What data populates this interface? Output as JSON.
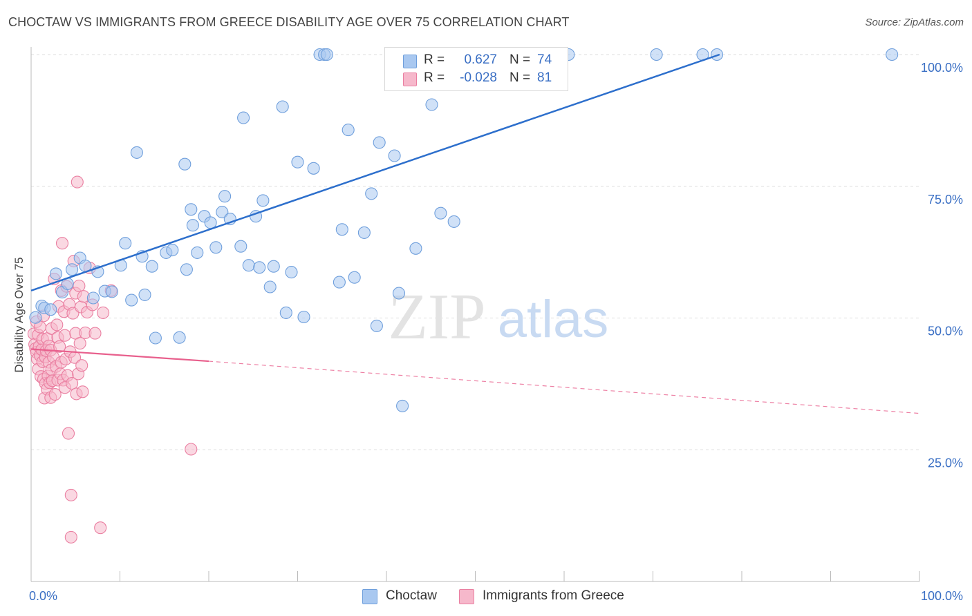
{
  "chart_data": {
    "type": "scatter",
    "title": "CHOCTAW VS IMMIGRANTS FROM GREECE DISABILITY AGE OVER 75 CORRELATION CHART",
    "source": "Source: ZipAtlas.com",
    "ylabel": "Disability Age Over 75",
    "xlabel": "",
    "xlim": [
      0,
      100
    ],
    "ylim": [
      0,
      103
    ],
    "x_tick_labels": [
      "0.0%",
      "100.0%"
    ],
    "y_tick_labels": [
      "25.0%",
      "50.0%",
      "75.0%",
      "100.0%"
    ],
    "y_ticks": [
      25,
      50,
      75,
      100
    ],
    "watermark": {
      "zip": "ZIP",
      "atlas": "atlas"
    },
    "legend": [
      {
        "r_label": "R =",
        "r": "0.627",
        "n_label": "N =",
        "n": "74"
      },
      {
        "r_label": "R =",
        "r": "-0.028",
        "n_label": "N =",
        "n": "81"
      }
    ],
    "colors": {
      "choctaw_fill": "#a9c8f0",
      "choctaw_stroke": "#6f9fdc",
      "choctaw_line": "#2d6fcc",
      "greece_fill": "#f6b8cb",
      "greece_stroke": "#ea7fa1",
      "greece_line": "#e8608d",
      "axis_text": "#3a6fc4",
      "grid": "#dddddd"
    },
    "series": [
      {
        "name": "Choctaw",
        "trend": {
          "x": [
            0,
            77.5
          ],
          "y": [
            55.2,
            100
          ]
        },
        "points": [
          [
            0.5,
            50.1
          ],
          [
            1.2,
            52.3
          ],
          [
            1.5,
            51.9
          ],
          [
            2.2,
            51.6
          ],
          [
            2.8,
            58.4
          ],
          [
            3.5,
            54.9
          ],
          [
            4.1,
            56.5
          ],
          [
            4.6,
            59.2
          ],
          [
            5.5,
            61.4
          ],
          [
            6.1,
            59.9
          ],
          [
            7.0,
            53.8
          ],
          [
            7.5,
            58.8
          ],
          [
            8.3,
            55.1
          ],
          [
            9.1,
            55.0
          ],
          [
            10.1,
            60.0
          ],
          [
            10.6,
            64.2
          ],
          [
            11.3,
            53.4
          ],
          [
            11.9,
            81.4
          ],
          [
            12.5,
            61.7
          ],
          [
            12.8,
            54.4
          ],
          [
            13.6,
            59.8
          ],
          [
            14.0,
            46.2
          ],
          [
            15.2,
            62.4
          ],
          [
            15.9,
            62.9
          ],
          [
            16.7,
            46.3
          ],
          [
            17.3,
            79.2
          ],
          [
            17.5,
            59.2
          ],
          [
            18.0,
            70.6
          ],
          [
            18.2,
            67.6
          ],
          [
            18.7,
            62.4
          ],
          [
            19.5,
            69.3
          ],
          [
            20.2,
            68.1
          ],
          [
            20.8,
            63.4
          ],
          [
            21.5,
            70.1
          ],
          [
            21.8,
            73.1
          ],
          [
            22.4,
            68.8
          ],
          [
            23.6,
            63.6
          ],
          [
            23.9,
            88.0
          ],
          [
            24.5,
            60.0
          ],
          [
            25.3,
            69.3
          ],
          [
            25.7,
            59.6
          ],
          [
            26.1,
            72.3
          ],
          [
            26.9,
            55.9
          ],
          [
            27.3,
            59.8
          ],
          [
            28.3,
            90.1
          ],
          [
            28.7,
            51.0
          ],
          [
            29.3,
            58.7
          ],
          [
            30.0,
            79.6
          ],
          [
            30.7,
            50.2
          ],
          [
            31.8,
            78.4
          ],
          [
            32.5,
            100.0
          ],
          [
            33.0,
            100.0
          ],
          [
            33.3,
            100.0
          ],
          [
            34.7,
            56.8
          ],
          [
            35.0,
            66.8
          ],
          [
            35.7,
            85.7
          ],
          [
            36.4,
            57.7
          ],
          [
            37.5,
            66.2
          ],
          [
            38.3,
            73.6
          ],
          [
            38.9,
            48.5
          ],
          [
            39.2,
            83.3
          ],
          [
            40.9,
            80.8
          ],
          [
            41.4,
            54.7
          ],
          [
            41.8,
            33.3
          ],
          [
            43.3,
            63.2
          ],
          [
            45.1,
            90.5
          ],
          [
            45.5,
            100.0
          ],
          [
            46.1,
            69.9
          ],
          [
            47.6,
            68.3
          ],
          [
            60.5,
            100.0
          ],
          [
            70.4,
            100.0
          ],
          [
            75.6,
            100.0
          ],
          [
            77.2,
            100.0
          ],
          [
            96.9,
            100.0
          ]
        ]
      },
      {
        "name": "Immigrants from Greece",
        "trend_solid": {
          "x": [
            0,
            20
          ],
          "y": [
            44.1,
            41.8
          ]
        },
        "trend_dashed": {
          "x": [
            20,
            100
          ],
          "y": [
            41.8,
            31.9
          ]
        },
        "points": [
          [
            0.3,
            47.0
          ],
          [
            0.4,
            45.0
          ],
          [
            0.5,
            44.2
          ],
          [
            0.6,
            43.5
          ],
          [
            0.6,
            49.3
          ],
          [
            0.7,
            42.2
          ],
          [
            0.8,
            40.3
          ],
          [
            0.8,
            46.8
          ],
          [
            0.9,
            44.6
          ],
          [
            1.0,
            48.3
          ],
          [
            1.0,
            42.9
          ],
          [
            1.1,
            38.9
          ],
          [
            1.2,
            44.0
          ],
          [
            1.3,
            41.7
          ],
          [
            1.3,
            46.0
          ],
          [
            1.4,
            38.4
          ],
          [
            1.4,
            50.4
          ],
          [
            1.5,
            34.8
          ],
          [
            1.6,
            42.6
          ],
          [
            1.6,
            37.6
          ],
          [
            1.7,
            43.8
          ],
          [
            1.8,
            36.5
          ],
          [
            1.8,
            46.1
          ],
          [
            1.9,
            39.0
          ],
          [
            2.0,
            41.6
          ],
          [
            2.0,
            44.7
          ],
          [
            2.1,
            37.7
          ],
          [
            2.2,
            43.9
          ],
          [
            2.2,
            34.9
          ],
          [
            2.3,
            40.2
          ],
          [
            2.3,
            48.0
          ],
          [
            2.4,
            38.1
          ],
          [
            2.5,
            42.6
          ],
          [
            2.6,
            57.4
          ],
          [
            2.7,
            35.5
          ],
          [
            2.8,
            40.8
          ],
          [
            2.9,
            48.7
          ],
          [
            3.0,
            46.3
          ],
          [
            3.0,
            38.2
          ],
          [
            3.1,
            52.2
          ],
          [
            3.2,
            44.6
          ],
          [
            3.3,
            39.4
          ],
          [
            3.4,
            55.2
          ],
          [
            3.4,
            41.6
          ],
          [
            3.5,
            64.2
          ],
          [
            3.6,
            38.2
          ],
          [
            3.7,
            51.2
          ],
          [
            3.8,
            46.7
          ],
          [
            3.8,
            36.8
          ],
          [
            3.9,
            42.2
          ],
          [
            4.0,
            56.0
          ],
          [
            4.1,
            39.1
          ],
          [
            4.2,
            28.1
          ],
          [
            4.3,
            52.6
          ],
          [
            4.4,
            43.6
          ],
          [
            4.5,
            16.4
          ],
          [
            4.5,
            8.4
          ],
          [
            4.6,
            37.6
          ],
          [
            4.7,
            50.9
          ],
          [
            4.8,
            60.8
          ],
          [
            4.9,
            42.5
          ],
          [
            5.0,
            54.7
          ],
          [
            5.0,
            47.1
          ],
          [
            5.1,
            35.6
          ],
          [
            5.2,
            75.8
          ],
          [
            5.3,
            39.4
          ],
          [
            5.4,
            56.1
          ],
          [
            5.5,
            45.2
          ],
          [
            5.6,
            52.1
          ],
          [
            5.7,
            41.0
          ],
          [
            5.8,
            36.0
          ],
          [
            5.9,
            54.1
          ],
          [
            6.1,
            47.2
          ],
          [
            6.3,
            51.1
          ],
          [
            6.6,
            59.5
          ],
          [
            6.9,
            52.5
          ],
          [
            7.2,
            47.1
          ],
          [
            7.8,
            10.2
          ],
          [
            8.1,
            51.0
          ],
          [
            9.0,
            55.2
          ],
          [
            18.0,
            25.1
          ]
        ]
      }
    ]
  }
}
